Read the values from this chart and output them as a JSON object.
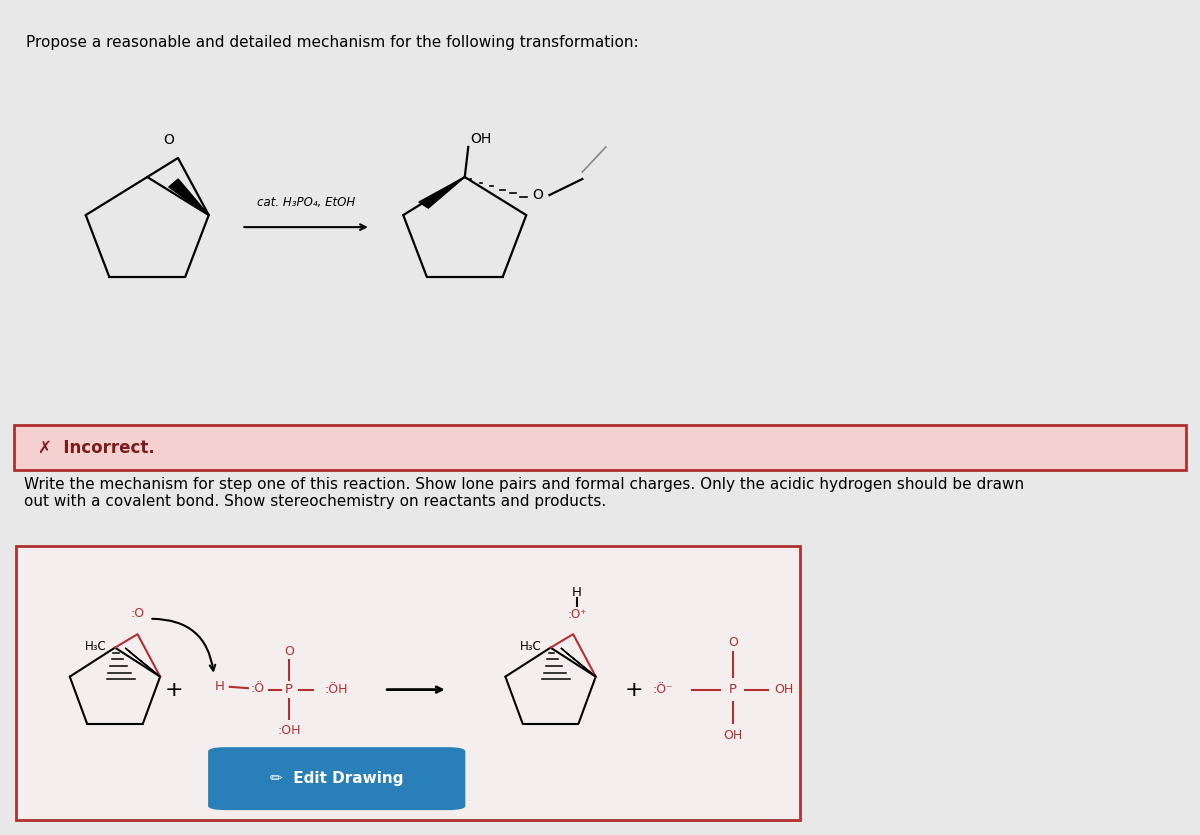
{
  "page_bg": "#e8e8e8",
  "top_panel_bg": "#ffffff",
  "top_title": "Propose a reasonable and detailed mechanism for the following transformation:",
  "incorrect_panel_bg": "#f5d0d0",
  "incorrect_border": "#b03030",
  "incorrect_text": "✗  Incorrect.",
  "incorrect_fontsize": 12,
  "instructions_text": "Write the mechanism for step one of this reaction. Show lone pairs and formal charges. Only the acidic hydrogen should be drawn\nout with a covalent bond. Show stereochemistry on reactants and products.",
  "instructions_fontsize": 11,
  "bottom_panel_bg": "#f5eeee",
  "bottom_border": "#b03030",
  "edit_button_color": "#2980b9",
  "edit_button_text": "✏  Edit Drawing",
  "edit_button_text_color": "#ffffff",
  "red_col": "#b03030",
  "black": "#000000"
}
